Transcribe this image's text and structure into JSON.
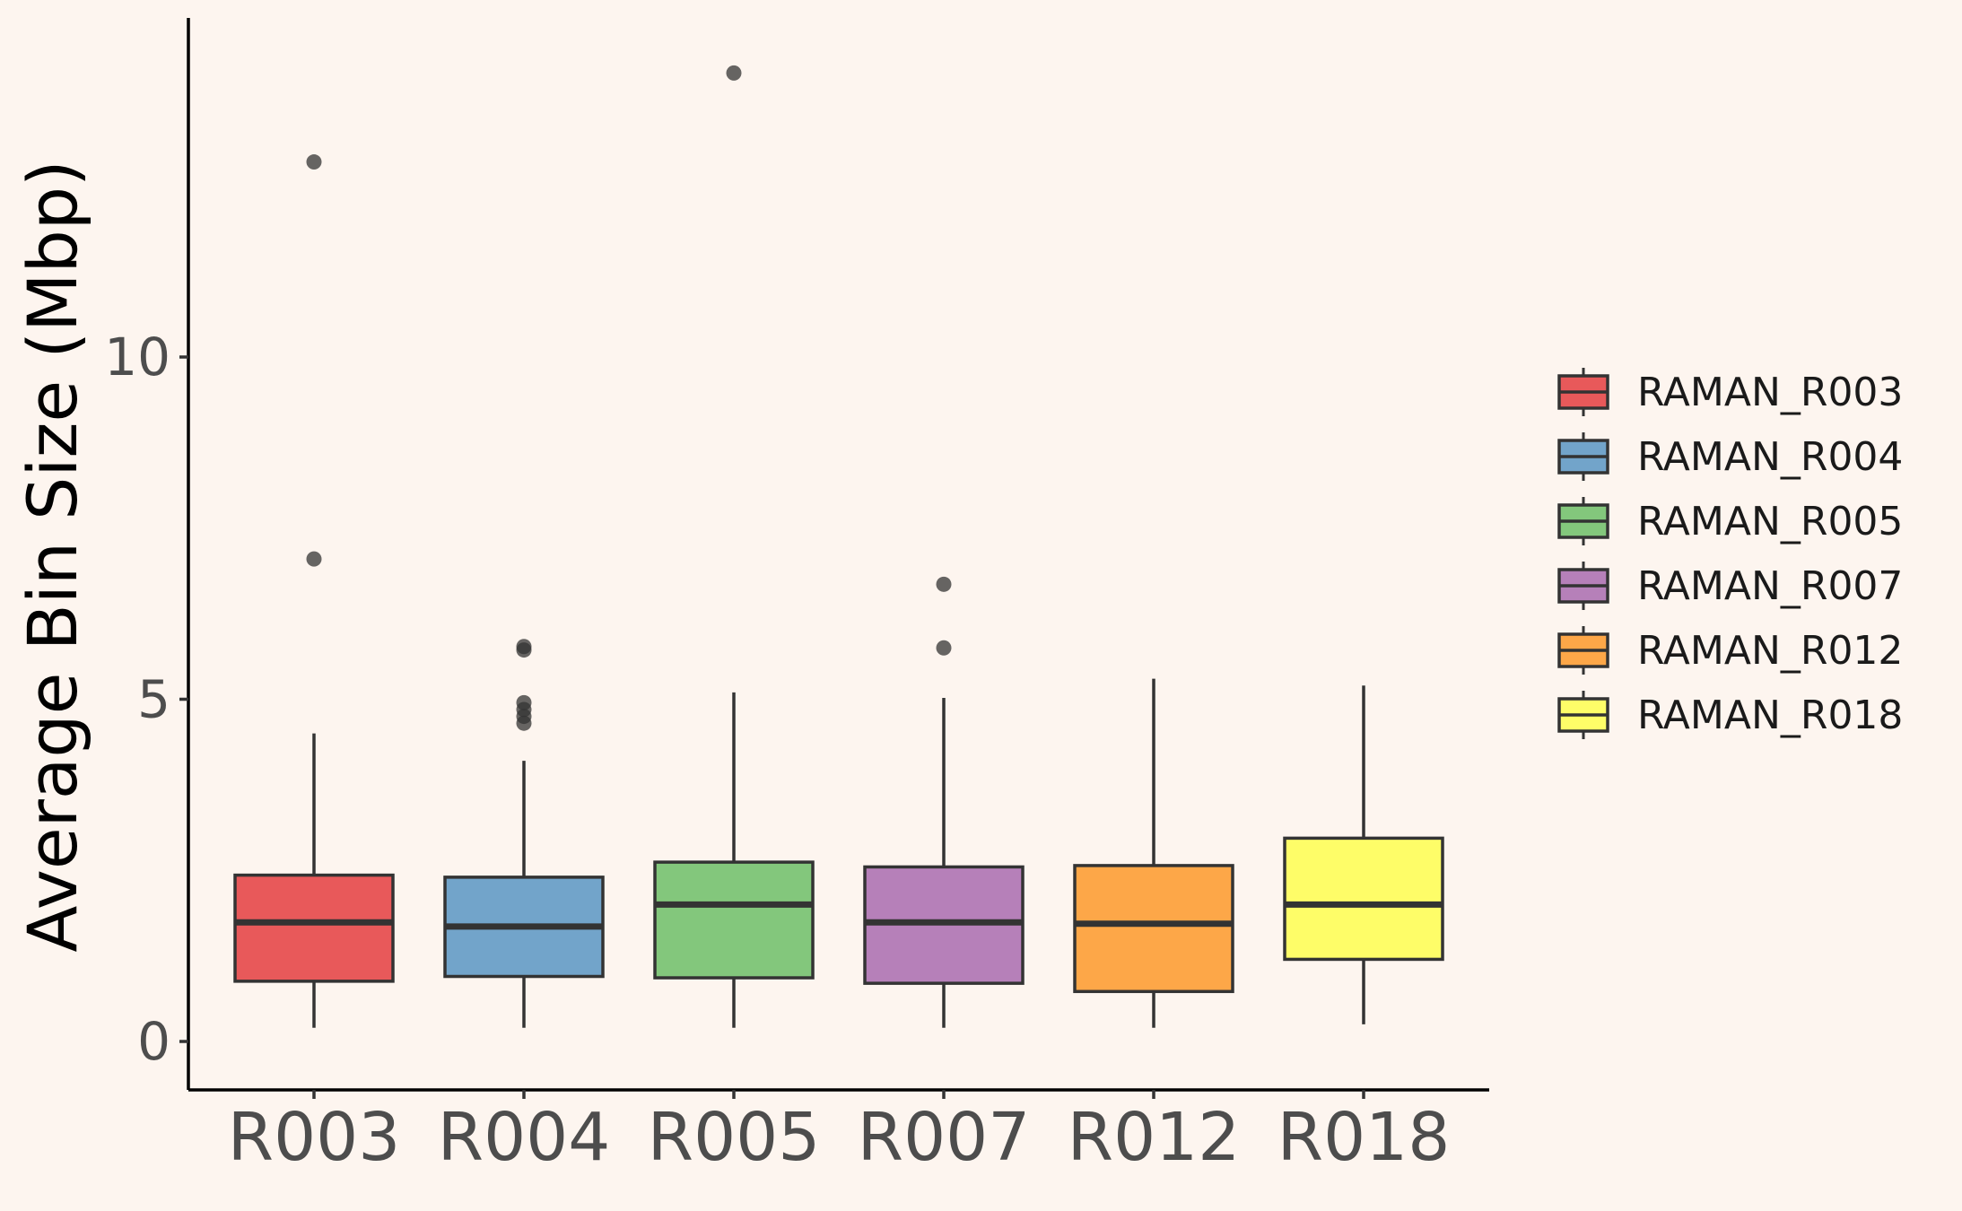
{
  "chart_data": {
    "type": "boxplot",
    "ylabel": "Average Bin Size (Mbp)",
    "xlabel": "",
    "ylim": [
      -0.7,
      15.0
    ],
    "yticks": [
      0,
      5,
      10
    ],
    "ytick_labels": [
      "0",
      "5",
      "10"
    ],
    "categories": [
      "R003",
      "R004",
      "R005",
      "R007",
      "R012",
      "R018"
    ],
    "legend_position": "right",
    "grid": false,
    "series": [
      {
        "name": "RAMAN_R003",
        "category": "R003",
        "color": "#e8595a",
        "whisker_low": 0.2,
        "q1": 0.88,
        "median": 1.74,
        "q3": 2.43,
        "whisker_high": 4.5,
        "outliers": [
          7.05,
          12.85
        ]
      },
      {
        "name": "RAMAN_R004",
        "category": "R004",
        "color": "#72a4ca",
        "whisker_low": 0.2,
        "q1": 0.95,
        "median": 1.68,
        "q3": 2.4,
        "whisker_high": 4.1,
        "outliers": [
          4.65,
          4.75,
          4.85,
          4.95,
          5.72,
          5.77
        ]
      },
      {
        "name": "RAMAN_R005",
        "category": "R005",
        "color": "#83c77c",
        "whisker_low": 0.2,
        "q1": 0.93,
        "median": 2.0,
        "q3": 2.62,
        "whisker_high": 5.1,
        "outliers": [
          14.15
        ]
      },
      {
        "name": "RAMAN_R007",
        "category": "R007",
        "color": "#b680b9",
        "whisker_low": 0.2,
        "q1": 0.85,
        "median": 1.74,
        "q3": 2.55,
        "whisker_high": 5.02,
        "outliers": [
          5.75,
          6.68
        ]
      },
      {
        "name": "RAMAN_R012",
        "category": "R012",
        "color": "#fda748",
        "whisker_low": 0.2,
        "q1": 0.73,
        "median": 1.72,
        "q3": 2.57,
        "whisker_high": 5.3,
        "outliers": []
      },
      {
        "name": "RAMAN_R018",
        "category": "R018",
        "color": "#fefd68",
        "whisker_low": 0.25,
        "q1": 1.2,
        "median": 2.0,
        "q3": 2.97,
        "whisker_high": 5.2,
        "outliers": []
      }
    ]
  }
}
